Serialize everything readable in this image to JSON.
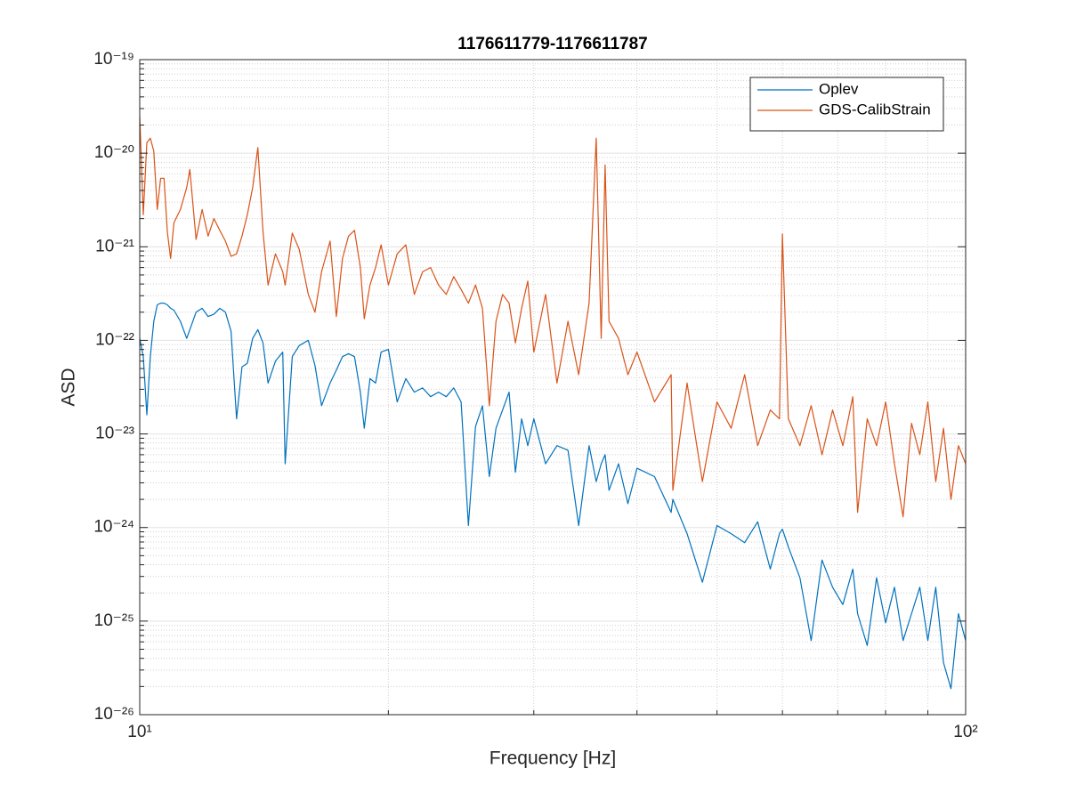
{
  "chart_data": {
    "type": "line",
    "title": "1176611779-1176611787",
    "x_label": "Frequency [Hz]",
    "y_label": "ASD",
    "x_log": true,
    "y_log": true,
    "grid": true,
    "minor_grid": true,
    "legend": "northeast",
    "xlim": [
      10,
      100
    ],
    "xticks": [
      {
        "value": 10,
        "label": "10¹"
      },
      {
        "value": 100,
        "label": "10²"
      }
    ],
    "ylim": [
      1e-26,
      1e-19
    ],
    "yticks": [
      {
        "value": 1e-26,
        "label": "10⁻²⁶"
      },
      {
        "value": 1e-25,
        "label": "10⁻²⁵"
      },
      {
        "value": 1e-24,
        "label": "10⁻²⁴"
      },
      {
        "value": 1e-23,
        "label": "10⁻²³"
      },
      {
        "value": 1e-22,
        "label": "10⁻²²"
      },
      {
        "value": 1e-21,
        "label": "10⁻²¹"
      },
      {
        "value": 1e-20,
        "label": "10⁻²⁰"
      },
      {
        "value": 1e-19,
        "label": "10⁻¹⁹"
      }
    ],
    "x": [
      10,
      10.1,
      10.2,
      10.3,
      10.4,
      10.5,
      10.6,
      10.7,
      10.8,
      10.9,
      11,
      11.2,
      11.4,
      11.5,
      11.7,
      11.9,
      12.1,
      12.3,
      12.5,
      12.7,
      12.9,
      13.1,
      13.3,
      13.5,
      13.7,
      13.9,
      14.1,
      14.3,
      14.6,
      14.9,
      15,
      15.3,
      15.6,
      16,
      16.3,
      16.6,
      17,
      17.3,
      17.6,
      17.9,
      18.2,
      18.5,
      18.7,
      19,
      19.3,
      19.6,
      20,
      20.5,
      21,
      21.5,
      22,
      22.5,
      23,
      23.5,
      24,
      24.5,
      25,
      25.5,
      26,
      26.5,
      27,
      27.5,
      28,
      28.5,
      29,
      29.5,
      30,
      31,
      32,
      33,
      34,
      35,
      35.7,
      36.2,
      36.6,
      37,
      38,
      39,
      40,
      42,
      44,
      44.2,
      46,
      48,
      50,
      52,
      54,
      56,
      58,
      59.5,
      60,
      61,
      63,
      65,
      67,
      69,
      71,
      73,
      74,
      76,
      78,
      80,
      82,
      84,
      86,
      88,
      90,
      92,
      94,
      96,
      98,
      100
    ],
    "series": [
      {
        "name": "Oplev",
        "color": "#0072bd",
        "values": [
          1.05e-22,
          6.7e-23,
          1.6e-23,
          6.7e-23,
          1.6e-22,
          2.4e-22,
          2.5e-22,
          2.5e-22,
          2.4e-22,
          2.2e-22,
          2.1e-22,
          1.6e-22,
          1.05e-22,
          1.3e-22,
          2e-22,
          2.2e-22,
          1.8e-22,
          1.9e-22,
          2.2e-22,
          2e-22,
          1.25e-22,
          1.45e-23,
          5.2e-23,
          5.7e-23,
          1.05e-22,
          1.3e-22,
          9.4e-23,
          3.5e-23,
          6e-23,
          7.5e-23,
          4.8e-24,
          6.7e-23,
          8.8e-23,
          1e-22,
          5.4e-23,
          2e-23,
          3.5e-23,
          4.8e-23,
          6.7e-23,
          7.2e-23,
          6.7e-23,
          2.8e-23,
          1.15e-23,
          3.9e-23,
          3.5e-23,
          7.5e-23,
          8e-23,
          2.2e-23,
          3.9e-23,
          2.8e-23,
          3.1e-23,
          2.5e-23,
          2.8e-23,
          2.5e-23,
          3.1e-23,
          2.2e-23,
          1.05e-24,
          1.2e-23,
          2e-23,
          3.5e-24,
          1.15e-23,
          1.8e-23,
          2.8e-23,
          3.9e-24,
          1.45e-23,
          7.5e-24,
          1.45e-23,
          4.8e-24,
          7.5e-24,
          6.7e-24,
          1.05e-24,
          7.5e-24,
          3.1e-24,
          4.8e-24,
          6e-24,
          2.5e-24,
          4.8e-24,
          1.8e-24,
          4.3e-24,
          3.5e-24,
          1.45e-24,
          2e-24,
          8.6e-25,
          2.6e-25,
          1.05e-24,
          8.6e-25,
          6.9e-25,
          1.15e-24,
          3.6e-25,
          8.6e-25,
          9.6e-25,
          6.2e-25,
          2.9e-25,
          6.2e-26,
          4.5e-25,
          2.3e-25,
          1.5e-25,
          3.6e-25,
          1.2e-25,
          5.5e-26,
          2.9e-25,
          9.6e-26,
          2.3e-25,
          6.2e-26,
          1.2e-25,
          2.3e-25,
          6.2e-26,
          2.3e-25,
          3.6e-26,
          1.9e-26,
          1.2e-25,
          6.2e-26
        ]
      },
      {
        "name": "GDS-CalibStrain",
        "color": "#d95319",
        "values": [
          2.5e-20,
          2.2e-21,
          1.3e-20,
          1.45e-20,
          1.05e-20,
          2.5e-21,
          5.4e-21,
          5.4e-21,
          1.45e-21,
          7.5e-22,
          1.8e-21,
          2.5e-21,
          4.3e-21,
          6.7e-21,
          1.2e-21,
          2.5e-21,
          1.3e-21,
          2e-21,
          1.5e-21,
          1.15e-21,
          7.9e-22,
          8.4e-22,
          1.3e-21,
          2.2e-21,
          4.3e-21,
          1.15e-20,
          1.45e-21,
          3.9e-22,
          8.4e-22,
          5.4e-22,
          3.9e-22,
          1.4e-21,
          9.4e-22,
          3.1e-22,
          2e-22,
          5.4e-22,
          1.15e-21,
          1.8e-22,
          7.5e-22,
          1.3e-21,
          1.5e-21,
          6e-22,
          1.7e-22,
          3.9e-22,
          6e-22,
          1.05e-21,
          3.9e-22,
          8.4e-22,
          1.05e-21,
          3.1e-22,
          5.4e-22,
          6e-22,
          3.9e-22,
          3.1e-22,
          4.8e-22,
          3.5e-22,
          2.5e-22,
          3.9e-22,
          2.2e-22,
          2e-23,
          1.6e-22,
          3.1e-22,
          2.5e-22,
          9.4e-23,
          2.2e-22,
          4.3e-22,
          7.5e-23,
          3.1e-22,
          3.5e-23,
          1.6e-22,
          4.3e-23,
          2.5e-22,
          1.45e-20,
          1.05e-22,
          7.5e-21,
          1.6e-22,
          1.05e-22,
          4.3e-23,
          7.5e-23,
          2.2e-23,
          4.3e-23,
          2.5e-24,
          3.5e-23,
          3.1e-24,
          2.2e-23,
          1.15e-23,
          4.3e-23,
          7.5e-24,
          1.8e-23,
          1.45e-23,
          1.37e-21,
          1.45e-23,
          7.5e-24,
          2e-23,
          6e-24,
          1.8e-23,
          7.5e-24,
          2.5e-23,
          1.45e-24,
          1.45e-23,
          7.5e-24,
          2.2e-23,
          4.8e-24,
          1.3e-24,
          1.3e-23,
          6e-24,
          2.2e-23,
          3.1e-24,
          1.15e-23,
          2e-24,
          7.5e-24,
          4.8e-24
        ]
      }
    ]
  }
}
